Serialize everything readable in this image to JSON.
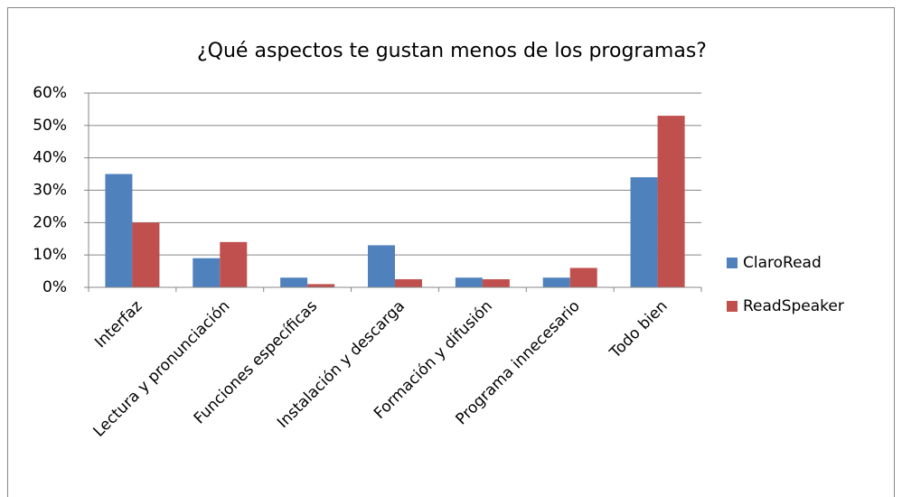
{
  "chart_data": {
    "type": "bar",
    "title": "¿Qué aspectos te gustan menos de los programas?",
    "categories": [
      "Interfaz",
      "Lectura y pronunciación",
      "Funciones específicas",
      "Instalación y descarga",
      "Formación y difusión",
      "Programa innecesario",
      "Todo bien"
    ],
    "series": [
      {
        "name": "ClaroRead",
        "color": "#4f81bd",
        "values": [
          35,
          9,
          3,
          13,
          3,
          3,
          34
        ]
      },
      {
        "name": "ReadSpeaker",
        "color": "#c0504d",
        "values": [
          20,
          14,
          1,
          2.5,
          2.5,
          6,
          53
        ]
      }
    ],
    "ylim": [
      0,
      60
    ],
    "yticks": [
      {
        "value": 0,
        "label": "0%"
      },
      {
        "value": 10,
        "label": "10%"
      },
      {
        "value": 20,
        "label": "20%"
      },
      {
        "value": 30,
        "label": "30%"
      },
      {
        "value": 40,
        "label": "40%"
      },
      {
        "value": 50,
        "label": "50%"
      },
      {
        "value": 60,
        "label": "60%"
      }
    ],
    "grid": true,
    "legend": "right"
  }
}
